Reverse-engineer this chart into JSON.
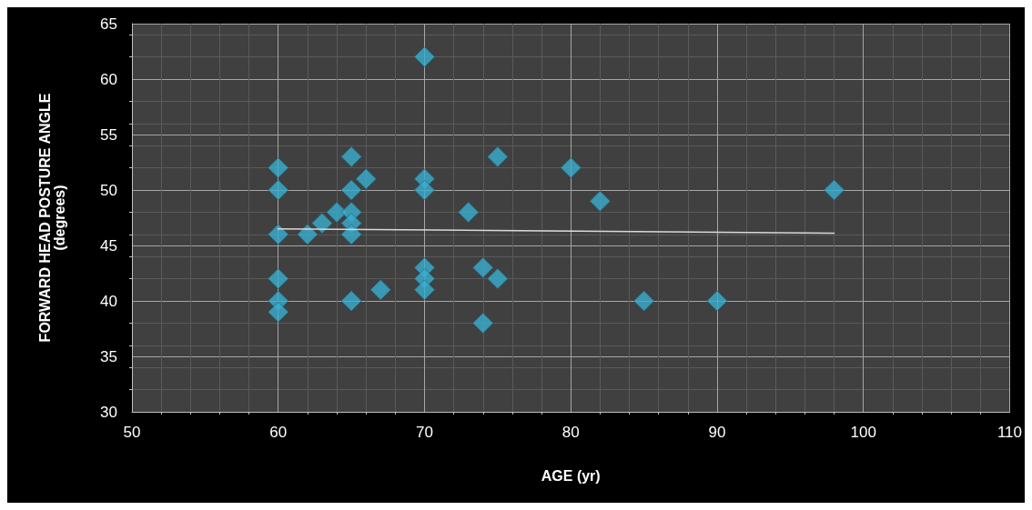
{
  "chart_data": {
    "type": "scatter",
    "xlabel": "AGE (yr)",
    "ylabel": "FORWARD HEAD POSTURE ANGLE\n(degrees)",
    "xlim": [
      50,
      110
    ],
    "ylim": [
      30,
      65
    ],
    "xticks": [
      50,
      60,
      70,
      80,
      90,
      100,
      110
    ],
    "yticks": [
      30,
      35,
      40,
      45,
      50,
      55,
      60,
      65
    ],
    "grid": true,
    "marker": "diamond",
    "series": [
      {
        "color": "#3aaed0",
        "x": [
          60,
          60,
          60,
          60,
          60,
          60,
          62,
          63,
          64,
          65,
          65,
          65,
          65,
          65,
          65,
          66,
          67,
          70,
          70,
          70,
          70,
          70,
          70,
          73,
          74,
          74,
          75,
          75,
          80,
          82,
          85,
          90,
          98
        ],
        "values": [
          52,
          50,
          46,
          42,
          40,
          39,
          46,
          47,
          48,
          53,
          50,
          48,
          47,
          46,
          40,
          51,
          41,
          62,
          51,
          50,
          43,
          42,
          41,
          48,
          43,
          38,
          53,
          42,
          52,
          49,
          40,
          40,
          50
        ]
      },
      {
        "type": "line",
        "color": "#d9d9d9",
        "marker": "none",
        "x": [
          60,
          98
        ],
        "values": [
          46.5,
          46.1
        ]
      }
    ]
  }
}
